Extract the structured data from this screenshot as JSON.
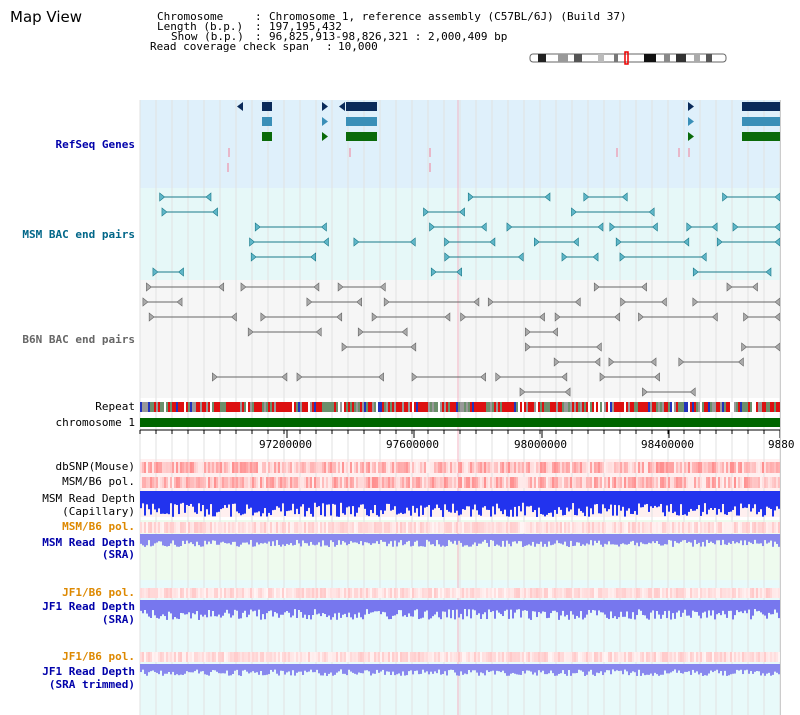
{
  "page": {
    "title": "Map View"
  },
  "info": {
    "chromosome_key": "Chromosome",
    "chromosome_value": "Chromosome 1, reference assembly (C57BL/6J) (Build 37)",
    "length_key": "Length (b.p.)",
    "length_value": "197,195,432",
    "show_key": "Show (b.p.)",
    "show_value": "96,825,913-98,826,321 : 2,000,409 bp",
    "coverage_key": "Read coverage check span",
    "coverage_value": "10,000"
  },
  "tracks": {
    "refseq": "RefSeq Genes",
    "msm_bac": "MSM BAC end pairs",
    "b6n_bac": "B6N BAC end pairs",
    "repeat": "Repeat",
    "chromosome": "chromosome 1",
    "dbsnp": "dbSNP(Mouse)",
    "msm_b6_pol": "MSM/B6 pol.",
    "msm_read_depth_cap_1": "MSM Read Depth",
    "msm_read_depth_cap_2": "(Capillary)",
    "msm_b6_pol_2": "MSM/B6 pol.",
    "msm_read_depth_sra_1": "MSM Read Depth",
    "msm_read_depth_sra_2": "(SRA)",
    "jf1_b6_pol": "JF1/B6 pol.",
    "jf1_read_depth_sra_1": "JF1 Read Depth",
    "jf1_read_depth_sra_2": "(SRA)",
    "jf1_b6_pol_2": "JF1/B6 pol.",
    "jf1_read_depth_trim_1": "JF1 Read Depth",
    "jf1_read_depth_trim_2": "(SRA trimmed)"
  },
  "axis": {
    "ticks": [
      "97200000",
      "97600000",
      "98000000",
      "98400000",
      "9880"
    ]
  },
  "colors": {
    "label_blue": "#0000aa",
    "label_teal": "#006688",
    "label_gray": "#666666",
    "label_orange": "#dd8800",
    "chromosome_green": "#006600"
  }
}
